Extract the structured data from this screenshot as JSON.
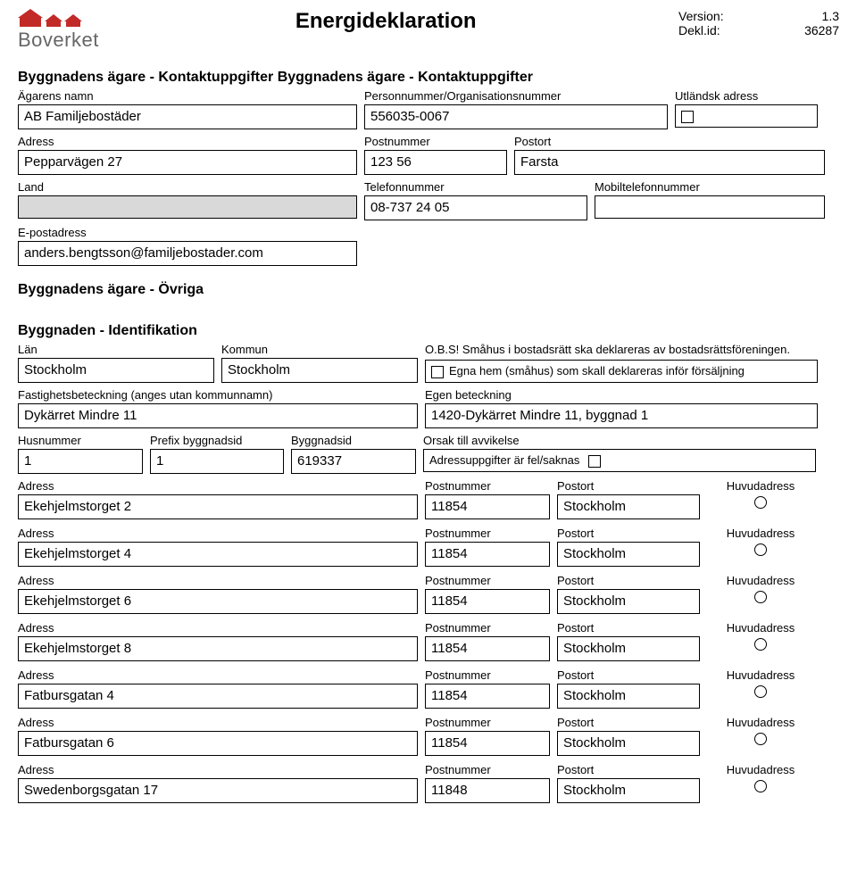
{
  "header": {
    "logo_text": "Boverket",
    "title": "Energideklaration",
    "version_label": "Version:",
    "version_value": "1.3",
    "dekl_label": "Dekl.id:",
    "dekl_value": "36287"
  },
  "owner_section_title": "Byggnadens ägare - Kontaktuppgifter Byggnadens ägare - Kontaktuppgifter",
  "owner": {
    "agarens_namn_label": "Ägarens namn",
    "agarens_namn": "AB Familjebostäder",
    "orgnr_label": "Personnummer/Organisationsnummer",
    "orgnr": "556035-0067",
    "utlandsk_label": "Utländsk adress",
    "adress_label": "Adress",
    "adress": "Pepparvägen 27",
    "postnr_label": "Postnummer",
    "postnr": "123 56",
    "postort_label": "Postort",
    "postort": "Farsta",
    "land_label": "Land",
    "land": "",
    "tel_label": "Telefonnummer",
    "tel": "08-737 24 05",
    "mobil_label": "Mobiltelefonnummer",
    "mobil": "",
    "epost_label": "E-postadress",
    "epost": "anders.bengtsson@familjebostader.com"
  },
  "owner_other_title": "Byggnadens ägare - Övriga",
  "ident_title": "Byggnaden - Identifikation",
  "ident": {
    "lan_label": "Län",
    "lan": "Stockholm",
    "kommun_label": "Kommun",
    "kommun": "Stockholm",
    "obs_text": "O.B.S! Småhus i bostadsrätt ska deklareras av bostadsrättsföreningen.",
    "egna_hem_text": "Egna hem (småhus) som skall deklareras inför försäljning",
    "fastighet_label": "Fastighetsbeteckning (anges utan kommunnamn)",
    "fastighet": "Dykärret Mindre 11",
    "egen_label": "Egen beteckning",
    "egen": "1420-Dykärret Mindre 11, byggnad 1",
    "husnr_label": "Husnummer",
    "husnr": "1",
    "prefix_label": "Prefix byggnadsid",
    "prefix": "1",
    "byggnadsid_label": "Byggnadsid",
    "byggnadsid": "619337",
    "orsak_label": "Orsak till avvikelse",
    "orsak_text": "Adressuppgifter är fel/saknas"
  },
  "addr_labels": {
    "adress": "Adress",
    "postnr": "Postnummer",
    "postort": "Postort",
    "huvud": "Huvudadress"
  },
  "addresses": [
    {
      "adress": "Ekehjelmstorget 2",
      "postnr": "11854",
      "postort": "Stockholm"
    },
    {
      "adress": "Ekehjelmstorget 4",
      "postnr": "11854",
      "postort": "Stockholm"
    },
    {
      "adress": "Ekehjelmstorget 6",
      "postnr": "11854",
      "postort": "Stockholm"
    },
    {
      "adress": "Ekehjelmstorget 8",
      "postnr": "11854",
      "postort": "Stockholm"
    },
    {
      "adress": "Fatbursgatan 4",
      "postnr": "11854",
      "postort": "Stockholm"
    },
    {
      "adress": "Fatbursgatan 6",
      "postnr": "11854",
      "postort": "Stockholm"
    },
    {
      "adress": "Swedenborgsgatan 17",
      "postnr": "11848",
      "postort": "Stockholm"
    }
  ]
}
